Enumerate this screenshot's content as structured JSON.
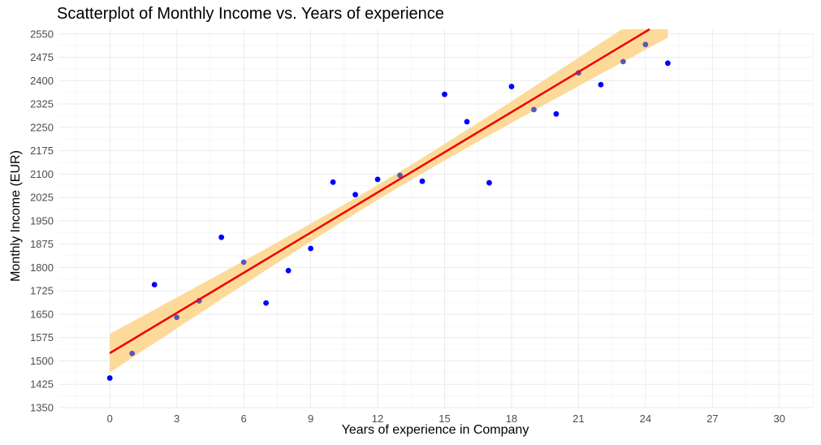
{
  "chart_data": {
    "type": "scatter",
    "title": "Scatterplot of Monthly Income vs. Years of experience",
    "xlabel": "Years of experience in Company",
    "ylabel": "Monthly Income (EUR)",
    "xlim": [
      -2.3,
      31.5
    ],
    "ylim": [
      1350,
      2565
    ],
    "x_ticks": [
      0,
      3,
      6,
      9,
      12,
      15,
      18,
      21,
      24,
      27,
      30
    ],
    "y_ticks": [
      1350,
      1425,
      1500,
      1575,
      1650,
      1725,
      1800,
      1875,
      1950,
      2025,
      2100,
      2175,
      2250,
      2325,
      2400,
      2475,
      2550
    ],
    "grid": true,
    "point_color": "#0000ff",
    "points": [
      {
        "x": 0,
        "y": 1445
      },
      {
        "x": 1,
        "y": 1524
      },
      {
        "x": 2,
        "y": 1745
      },
      {
        "x": 3,
        "y": 1640
      },
      {
        "x": 4,
        "y": 1693
      },
      {
        "x": 5,
        "y": 1897
      },
      {
        "x": 6,
        "y": 1817
      },
      {
        "x": 7,
        "y": 1686
      },
      {
        "x": 8,
        "y": 1790
      },
      {
        "x": 9,
        "y": 1861
      },
      {
        "x": 10,
        "y": 2074
      },
      {
        "x": 11,
        "y": 2034
      },
      {
        "x": 12,
        "y": 2083
      },
      {
        "x": 13,
        "y": 2096
      },
      {
        "x": 14,
        "y": 2077
      },
      {
        "x": 15,
        "y": 2356
      },
      {
        "x": 16,
        "y": 2268
      },
      {
        "x": 17,
        "y": 2072
      },
      {
        "x": 18,
        "y": 2381
      },
      {
        "x": 19,
        "y": 2307
      },
      {
        "x": 20,
        "y": 2293
      },
      {
        "x": 21,
        "y": 2425
      },
      {
        "x": 22,
        "y": 2387
      },
      {
        "x": 23,
        "y": 2461
      },
      {
        "x": 24,
        "y": 2516
      },
      {
        "x": 25,
        "y": 2456
      }
    ],
    "trend_line": {
      "method": "linear",
      "color": "#ee0000",
      "band_color": "#fdd68f",
      "x_range": [
        0,
        25
      ],
      "intercept": 1525,
      "slope": 43,
      "band_halfwidth_ends": 62,
      "band_halfwidth_center": 24
    }
  }
}
